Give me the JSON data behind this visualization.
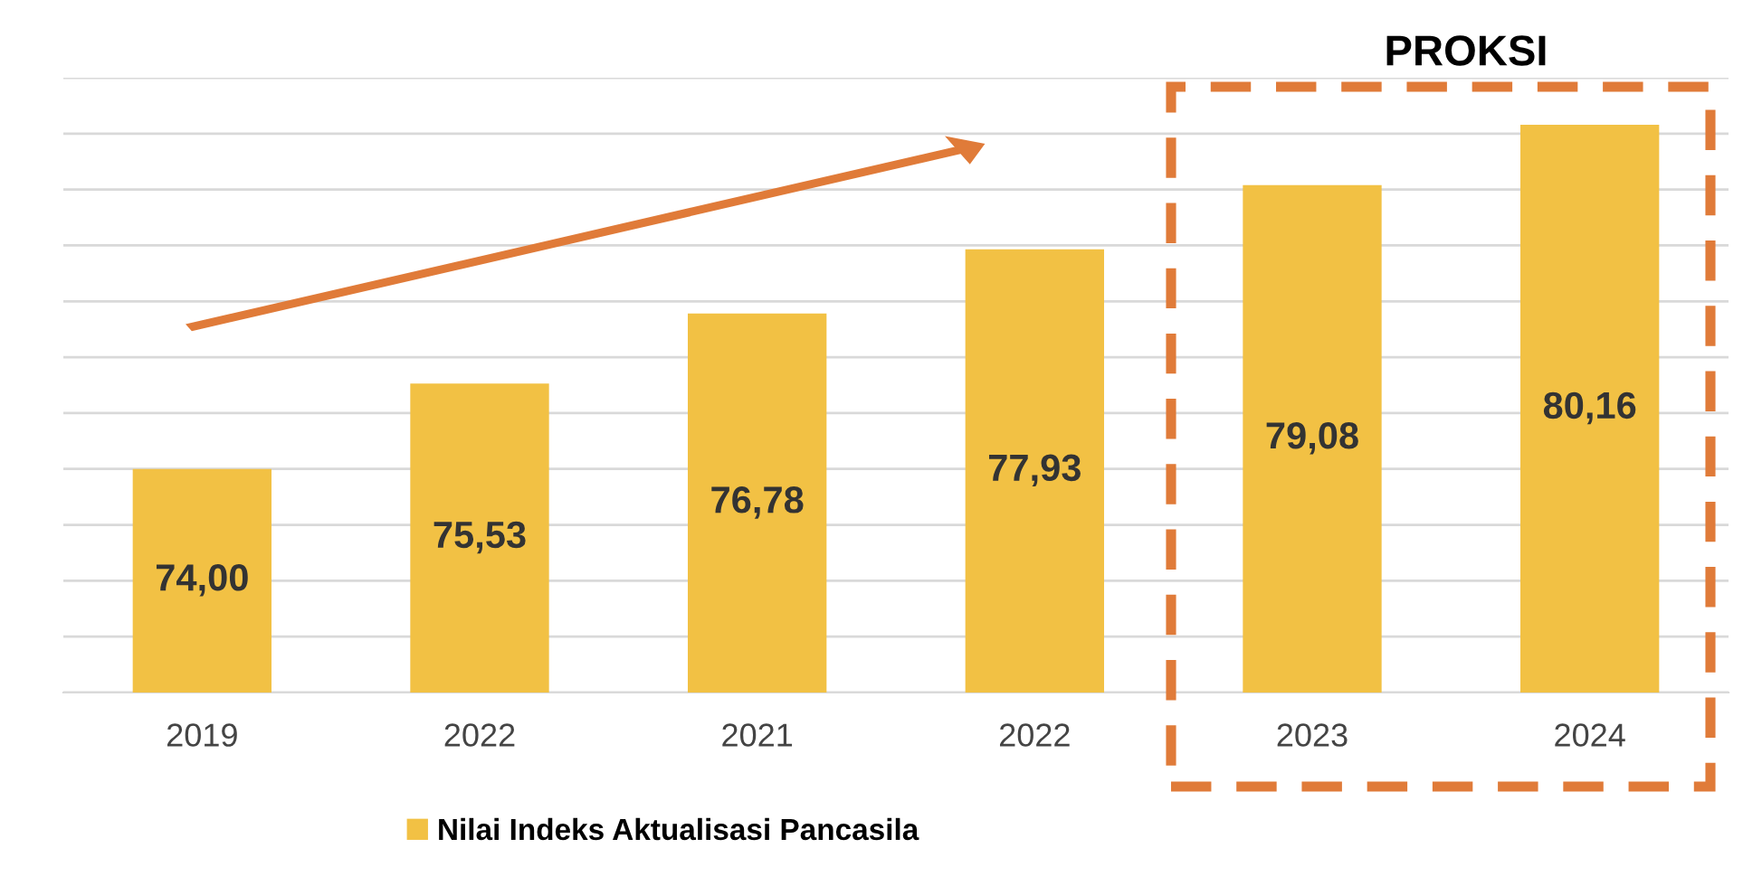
{
  "chart_data": {
    "type": "bar",
    "categories": [
      "2019",
      "2022",
      "2021",
      "2022",
      "2023",
      "2024"
    ],
    "series": [
      {
        "name": "Nilai Indeks Aktualisasi Pancasila",
        "color": "#f2c144",
        "values": [
          74.0,
          75.53,
          76.78,
          77.93,
          79.08,
          80.16
        ],
        "value_labels": [
          "74,00",
          "75,53",
          "76,78",
          "77,93",
          "79,08",
          "80,16"
        ]
      }
    ],
    "ylim": [
      70,
      81
    ],
    "yticks": [
      {
        "value": 70,
        "label": null
      },
      {
        "value": 71,
        "label": null
      },
      {
        "value": 72,
        "label": null
      },
      {
        "value": 73,
        "label": null
      },
      {
        "value": 74,
        "label": null
      },
      {
        "value": 75,
        "label": null
      },
      {
        "value": 76,
        "label": null
      },
      {
        "value": 77,
        "label": null
      },
      {
        "value": 78,
        "label": null
      },
      {
        "value": 79,
        "label": null
      },
      {
        "value": 80,
        "label": null
      },
      {
        "value": 81,
        "label": null
      }
    ],
    "tick_labels": "x",
    "grid": "y",
    "legend": "bottom left",
    "annotations": [
      "PROKSI"
    ]
  }
}
